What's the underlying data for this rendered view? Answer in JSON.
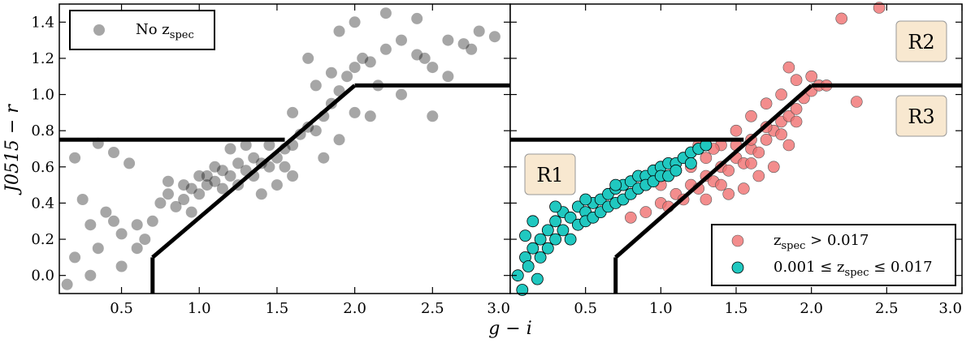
{
  "chart_data": [
    {
      "type": "scatter",
      "panel": "left",
      "xlabel": "g − i",
      "ylabel": "J0515 − r",
      "xlim": [
        0.1,
        3.0
      ],
      "ylim": [
        -0.1,
        1.5
      ],
      "xticks": [
        "0.5",
        "1.0",
        "1.5",
        "2.0",
        "2.5",
        "3.0"
      ],
      "yticks": [
        "0.0",
        "0.2",
        "0.4",
        "0.6",
        "0.8",
        "1.0",
        "1.2",
        "1.4"
      ],
      "legend": {
        "position": "top-left",
        "entries": [
          {
            "label": "No z",
            "sub": "spec",
            "color": "#000000"
          }
        ]
      },
      "series": [
        {
          "name": "No zspec",
          "color": "#000000",
          "points": [
            [
              0.15,
              -0.05
            ],
            [
              0.2,
              0.1
            ],
            [
              0.25,
              0.42
            ],
            [
              0.3,
              0.0
            ],
            [
              0.4,
              0.35
            ],
            [
              0.5,
              0.23
            ],
            [
              0.55,
              0.62
            ],
            [
              0.45,
              0.68
            ],
            [
              0.35,
              0.73
            ],
            [
              0.6,
              0.28
            ],
            [
              0.7,
              0.3
            ],
            [
              0.75,
              0.4
            ],
            [
              0.8,
              0.45
            ],
            [
              0.85,
              0.38
            ],
            [
              0.9,
              0.42
            ],
            [
              0.95,
              0.48
            ],
            [
              1.0,
              0.45
            ],
            [
              1.05,
              0.5
            ],
            [
              1.1,
              0.52
            ],
            [
              1.15,
              0.48
            ],
            [
              1.2,
              0.55
            ],
            [
              1.25,
              0.5
            ],
            [
              1.3,
              0.58
            ],
            [
              1.35,
              0.55
            ],
            [
              1.4,
              0.62
            ],
            [
              1.45,
              0.6
            ],
            [
              1.5,
              0.65
            ],
            [
              1.55,
              0.7
            ],
            [
              1.6,
              0.72
            ],
            [
              1.65,
              0.78
            ],
            [
              1.7,
              0.82
            ],
            [
              1.75,
              0.8
            ],
            [
              1.8,
              0.88
            ],
            [
              1.85,
              0.95
            ],
            [
              1.9,
              1.02
            ],
            [
              1.95,
              1.1
            ],
            [
              2.0,
              1.15
            ],
            [
              2.05,
              1.2
            ],
            [
              2.1,
              1.18
            ],
            [
              2.2,
              1.25
            ],
            [
              2.3,
              1.3
            ],
            [
              2.4,
              1.22
            ],
            [
              2.5,
              1.15
            ],
            [
              2.6,
              1.3
            ],
            [
              2.7,
              1.28
            ],
            [
              2.8,
              1.35
            ],
            [
              2.9,
              1.32
            ],
            [
              1.7,
              1.2
            ],
            [
              1.9,
              1.35
            ],
            [
              2.0,
              1.4
            ],
            [
              2.2,
              1.45
            ],
            [
              2.4,
              1.42
            ],
            [
              2.6,
              1.1
            ],
            [
              2.3,
              1.0
            ],
            [
              1.3,
              0.72
            ],
            [
              1.2,
              0.7
            ],
            [
              1.1,
              0.6
            ],
            [
              1.0,
              0.55
            ],
            [
              0.9,
              0.5
            ],
            [
              0.8,
              0.52
            ],
            [
              1.5,
              0.5
            ],
            [
              1.6,
              0.55
            ],
            [
              1.4,
              0.45
            ],
            [
              1.8,
              0.65
            ],
            [
              1.9,
              0.75
            ],
            [
              2.0,
              0.9
            ],
            [
              2.1,
              0.88
            ],
            [
              2.5,
              0.88
            ],
            [
              0.65,
              0.2
            ],
            [
              0.5,
              0.05
            ],
            [
              0.35,
              0.15
            ],
            [
              0.45,
              0.3
            ],
            [
              1.45,
              0.72
            ],
            [
              1.55,
              0.6
            ],
            [
              1.35,
              0.65
            ],
            [
              1.25,
              0.62
            ],
            [
              1.15,
              0.58
            ],
            [
              1.05,
              0.55
            ],
            [
              0.95,
              0.35
            ],
            [
              1.6,
              0.9
            ],
            [
              1.75,
              1.05
            ],
            [
              1.85,
              1.12
            ],
            [
              2.15,
              1.05
            ],
            [
              2.45,
              1.2
            ],
            [
              2.75,
              1.25
            ],
            [
              0.3,
              0.28
            ],
            [
              0.2,
              0.65
            ],
            [
              0.6,
              0.15
            ]
          ]
        }
      ],
      "cuts": [
        {
          "name": "horizontal-cut-lower",
          "points": [
            [
              0.1,
              0.75
            ],
            [
              1.55,
              0.75
            ]
          ]
        },
        {
          "name": "horizontal-cut-upper",
          "points": [
            [
              2.0,
              1.05
            ],
            [
              3.0,
              1.05
            ]
          ]
        },
        {
          "name": "diagonal-cut",
          "points": [
            [
              0.7,
              0.1
            ],
            [
              2.0,
              1.05
            ]
          ]
        },
        {
          "name": "vertical-cut",
          "points": [
            [
              0.7,
              -0.1
            ],
            [
              0.7,
              0.1
            ]
          ]
        }
      ]
    },
    {
      "type": "scatter",
      "panel": "right",
      "xlabel": "g − i",
      "xlim": [
        0.0,
        3.0
      ],
      "ylim": [
        -0.1,
        1.5
      ],
      "xticks": [
        "0.5",
        "1.0",
        "1.5",
        "2.0",
        "2.5",
        "3.0"
      ],
      "legend": {
        "position": "bottom-right",
        "entries": [
          {
            "label_pre": "z",
            "sub": "spec",
            "label_post": " > 0.017",
            "color": "#f07070"
          },
          {
            "label_pre": "0.001 ≤ z",
            "sub": "spec",
            "label_post": " ≤ 0.017",
            "color": "#20c8c0"
          }
        ]
      },
      "regions": [
        "R1",
        "R2",
        "R3"
      ],
      "series": [
        {
          "name": "zspec > 0.017",
          "color": "#f07070",
          "points": [
            [
              0.8,
              0.32
            ],
            [
              0.9,
              0.35
            ],
            [
              1.0,
              0.4
            ],
            [
              1.05,
              0.38
            ],
            [
              1.1,
              0.45
            ],
            [
              1.15,
              0.42
            ],
            [
              1.2,
              0.5
            ],
            [
              1.25,
              0.48
            ],
            [
              1.3,
              0.55
            ],
            [
              1.35,
              0.52
            ],
            [
              1.4,
              0.6
            ],
            [
              1.45,
              0.58
            ],
            [
              1.5,
              0.65
            ],
            [
              1.55,
              0.62
            ],
            [
              1.6,
              0.7
            ],
            [
              1.65,
              0.68
            ],
            [
              1.7,
              0.75
            ],
            [
              1.75,
              0.8
            ],
            [
              1.8,
              0.85
            ],
            [
              1.85,
              0.88
            ],
            [
              1.9,
              0.92
            ],
            [
              1.95,
              0.98
            ],
            [
              2.0,
              1.02
            ],
            [
              2.05,
              1.05
            ],
            [
              1.9,
              1.08
            ],
            [
              1.8,
              1.0
            ],
            [
              1.7,
              0.95
            ],
            [
              1.6,
              0.88
            ],
            [
              1.5,
              0.8
            ],
            [
              1.4,
              0.72
            ],
            [
              1.3,
              0.65
            ],
            [
              1.2,
              0.6
            ],
            [
              1.1,
              0.58
            ],
            [
              1.0,
              0.5
            ],
            [
              1.45,
              0.45
            ],
            [
              1.55,
              0.48
            ],
            [
              1.65,
              0.55
            ],
            [
              1.75,
              0.6
            ],
            [
              1.85,
              0.72
            ],
            [
              2.3,
              0.96
            ],
            [
              2.1,
              1.05
            ],
            [
              2.0,
              1.1
            ],
            [
              1.85,
              1.15
            ],
            [
              2.2,
              1.42
            ],
            [
              2.45,
              1.48
            ],
            [
              1.6,
              0.75
            ],
            [
              1.35,
              0.7
            ],
            [
              1.25,
              0.72
            ],
            [
              1.5,
              0.72
            ],
            [
              1.7,
              0.82
            ],
            [
              1.4,
              0.5
            ],
            [
              1.3,
              0.42
            ],
            [
              1.6,
              0.62
            ],
            [
              1.8,
              0.78
            ],
            [
              1.9,
              0.85
            ]
          ]
        },
        {
          "name": "0.001 ≤ zspec ≤ 0.017",
          "color": "#20c8c0",
          "points": [
            [
              0.05,
              0.0
            ],
            [
              0.1,
              0.1
            ],
            [
              0.15,
              0.15
            ],
            [
              0.2,
              0.2
            ],
            [
              0.25,
              0.25
            ],
            [
              0.3,
              0.3
            ],
            [
              0.35,
              0.35
            ],
            [
              0.4,
              0.32
            ],
            [
              0.45,
              0.38
            ],
            [
              0.5,
              0.35
            ],
            [
              0.55,
              0.4
            ],
            [
              0.6,
              0.42
            ],
            [
              0.65,
              0.45
            ],
            [
              0.7,
              0.48
            ],
            [
              0.75,
              0.5
            ],
            [
              0.8,
              0.52
            ],
            [
              0.85,
              0.55
            ],
            [
              0.9,
              0.55
            ],
            [
              0.95,
              0.58
            ],
            [
              1.0,
              0.6
            ],
            [
              1.05,
              0.62
            ],
            [
              1.1,
              0.62
            ],
            [
              1.15,
              0.65
            ],
            [
              1.2,
              0.68
            ],
            [
              1.25,
              0.7
            ],
            [
              1.3,
              0.72
            ],
            [
              0.1,
              0.22
            ],
            [
              0.15,
              0.3
            ],
            [
              0.2,
              0.1
            ],
            [
              0.25,
              0.15
            ],
            [
              0.3,
              0.2
            ],
            [
              0.35,
              0.25
            ],
            [
              0.4,
              0.2
            ],
            [
              0.45,
              0.28
            ],
            [
              0.5,
              0.3
            ],
            [
              0.55,
              0.32
            ],
            [
              0.6,
              0.35
            ],
            [
              0.65,
              0.38
            ],
            [
              0.7,
              0.4
            ],
            [
              0.75,
              0.42
            ],
            [
              0.8,
              0.45
            ],
            [
              0.85,
              0.48
            ],
            [
              0.9,
              0.5
            ],
            [
              0.95,
              0.52
            ],
            [
              1.0,
              0.55
            ],
            [
              0.12,
              0.05
            ],
            [
              0.18,
              -0.02
            ],
            [
              0.08,
              -0.08
            ],
            [
              0.3,
              0.38
            ],
            [
              0.5,
              0.42
            ],
            [
              0.7,
              0.5
            ],
            [
              1.05,
              0.55
            ],
            [
              1.1,
              0.58
            ],
            [
              1.2,
              0.62
            ]
          ]
        }
      ],
      "cuts": [
        {
          "name": "horizontal-cut-lower",
          "points": [
            [
              0.0,
              0.75
            ],
            [
              1.55,
              0.75
            ]
          ]
        },
        {
          "name": "horizontal-cut-upper",
          "points": [
            [
              2.0,
              1.05
            ],
            [
              3.0,
              1.05
            ]
          ]
        },
        {
          "name": "diagonal-cut",
          "points": [
            [
              0.7,
              0.1
            ],
            [
              2.0,
              1.05
            ]
          ]
        },
        {
          "name": "vertical-cut",
          "points": [
            [
              0.7,
              -0.1
            ],
            [
              0.7,
              0.1
            ]
          ]
        }
      ]
    }
  ]
}
